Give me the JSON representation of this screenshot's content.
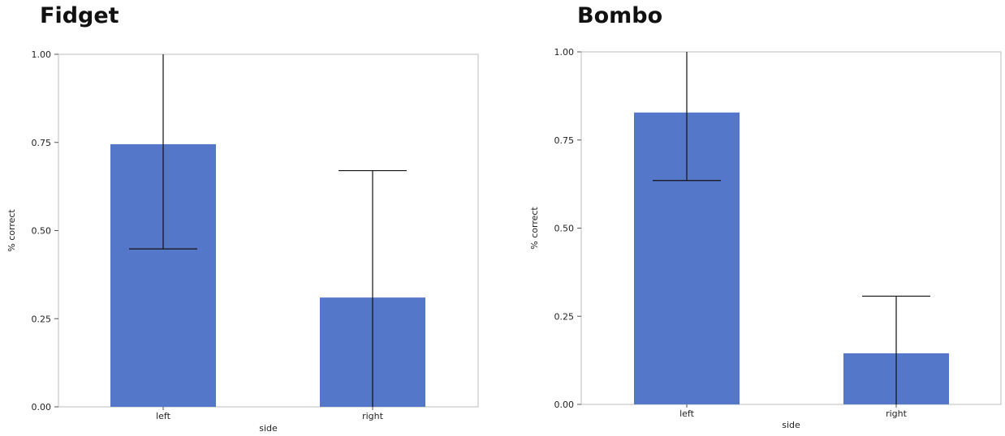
{
  "chart_data": [
    {
      "type": "bar",
      "title": "Fidget",
      "xlabel": "side",
      "ylabel": "% correct",
      "categories": [
        "left",
        "right"
      ],
      "values": [
        0.745,
        0.31
      ],
      "error_low": [
        0.448,
        0.0
      ],
      "error_high": [
        1.0,
        0.67
      ],
      "ylim": [
        0,
        1
      ],
      "yticks": [
        "0.00",
        "0.25",
        "0.50",
        "0.75",
        "1.00"
      ],
      "grid": false,
      "bar_color": "#5577c9"
    },
    {
      "type": "bar",
      "title": "Bombo",
      "xlabel": "side",
      "ylabel": "% correct",
      "categories": [
        "left",
        "right"
      ],
      "values": [
        0.828,
        0.145
      ],
      "error_low": [
        0.635,
        0.0
      ],
      "error_high": [
        1.0,
        0.307
      ],
      "ylim": [
        0,
        1
      ],
      "yticks": [
        "0.00",
        "0.25",
        "0.50",
        "0.75",
        "1.00"
      ],
      "grid": false,
      "bar_color": "#5577c9"
    }
  ]
}
